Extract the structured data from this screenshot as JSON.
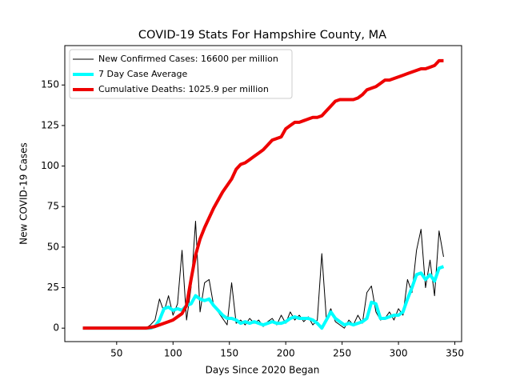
{
  "chart_data": {
    "type": "line",
    "title": "COVID-19 Stats For Hampshire County, MA",
    "xlabel": "Days Since 2020 Began",
    "ylabel": "New COVID-19 Cases",
    "x": [
      20,
      24,
      28,
      32,
      36,
      40,
      44,
      48,
      52,
      56,
      60,
      64,
      68,
      72,
      76,
      80,
      84,
      88,
      92,
      96,
      100,
      104,
      108,
      112,
      116,
      120,
      124,
      128,
      132,
      136,
      140,
      144,
      148,
      152,
      156,
      160,
      164,
      168,
      172,
      176,
      180,
      184,
      188,
      192,
      196,
      200,
      204,
      208,
      212,
      216,
      220,
      224,
      228,
      232,
      236,
      240,
      244,
      248,
      252,
      256,
      260,
      264,
      268,
      272,
      276,
      280,
      284,
      288,
      292,
      296,
      300,
      304,
      308,
      312,
      316,
      320,
      324,
      328,
      332,
      336,
      340
    ],
    "series": [
      {
        "name": "New Confirmed Cases: 16600 per million",
        "color": "#000000",
        "width": 1,
        "values": [
          0,
          0,
          0,
          0,
          0,
          0,
          0,
          0,
          0,
          0,
          0,
          0,
          0,
          0,
          0,
          2,
          5,
          18,
          10,
          20,
          8,
          15,
          48,
          5,
          25,
          66,
          10,
          28,
          30,
          14,
          10,
          6,
          2,
          28,
          3,
          5,
          2,
          6,
          3,
          5,
          1,
          4,
          6,
          2,
          8,
          3,
          10,
          5,
          8,
          4,
          7,
          2,
          5,
          46,
          6,
          12,
          4,
          2,
          0,
          5,
          2,
          8,
          3,
          22,
          26,
          10,
          5,
          6,
          10,
          5,
          12,
          8,
          30,
          22,
          48,
          61,
          25,
          42,
          20,
          60,
          44
        ]
      },
      {
        "name": "7 Day Case Average",
        "color": "#00ffff",
        "width": 4,
        "values": [
          0,
          0,
          0,
          0,
          0,
          0,
          0,
          0,
          0,
          0,
          0,
          0,
          0,
          0,
          0,
          0,
          1,
          5,
          12,
          13,
          11,
          12,
          11,
          14,
          15,
          20,
          18,
          17,
          18,
          14,
          11,
          8,
          6,
          6,
          5,
          3,
          4,
          3,
          4,
          3,
          2,
          3,
          4,
          3,
          3,
          4,
          6,
          7,
          6,
          6,
          6,
          5,
          3,
          0,
          5,
          10,
          6,
          4,
          2,
          3,
          2,
          3,
          4,
          6,
          16,
          15,
          6,
          6,
          7,
          8,
          8,
          10,
          18,
          25,
          33,
          34,
          30,
          33,
          29,
          37,
          38
        ]
      },
      {
        "name": "Cumulative Deaths: 1025.9 per million",
        "color": "#ee0000",
        "width": 4,
        "values": [
          0,
          0,
          0,
          0,
          0,
          0,
          0,
          0,
          0,
          0,
          0,
          0,
          0,
          0,
          0,
          0.5,
          1,
          2,
          3,
          4,
          5,
          7,
          9,
          14,
          30,
          45,
          55,
          62,
          68,
          74,
          79,
          84,
          88,
          92,
          98,
          101,
          102,
          104,
          106,
          108,
          110,
          113,
          116,
          117,
          118,
          123,
          125,
          127,
          127,
          128,
          129,
          130,
          130,
          131,
          134,
          137,
          140,
          141,
          141,
          141,
          141,
          142,
          144,
          147,
          148,
          149,
          151,
          153,
          153,
          154,
          155,
          156,
          157,
          158,
          159,
          160,
          160,
          161,
          162,
          165,
          165
        ]
      }
    ],
    "xlim": [
      4,
      356
    ],
    "xticks": [
      50,
      100,
      150,
      200,
      250,
      300,
      350
    ],
    "ylim": [
      -8.3,
      174.3
    ],
    "yticks": [
      0,
      25,
      50,
      75,
      100,
      125,
      150
    ],
    "legend": "upper left"
  }
}
